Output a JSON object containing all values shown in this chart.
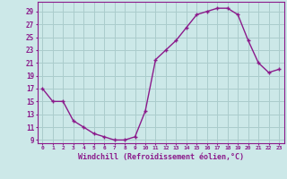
{
  "hours": [
    0,
    1,
    2,
    3,
    4,
    5,
    6,
    7,
    8,
    9,
    10,
    11,
    12,
    13,
    14,
    15,
    16,
    17,
    18,
    19,
    20,
    21,
    22,
    23
  ],
  "values": [
    17,
    15,
    15,
    12,
    11,
    10,
    9.5,
    9,
    9,
    9.5,
    13.5,
    21.5,
    23,
    24.5,
    26.5,
    28.5,
    29,
    29.5,
    29.5,
    28.5,
    24.5,
    21,
    19.5,
    20
  ],
  "line_color": "#8b1a8b",
  "marker_color": "#8b1a8b",
  "bg_color": "#cce8e8",
  "grid_color": "#aacccc",
  "axis_color": "#8b1a8b",
  "tick_label_color": "#8b1a8b",
  "xlabel": "Windchill (Refroidissement éolien,°C)",
  "ylim": [
    8.5,
    30.5
  ],
  "yticks": [
    9,
    11,
    13,
    15,
    17,
    19,
    21,
    23,
    25,
    27,
    29
  ],
  "xticks": [
    0,
    1,
    2,
    3,
    4,
    5,
    6,
    7,
    8,
    9,
    10,
    11,
    12,
    13,
    14,
    15,
    16,
    17,
    18,
    19,
    20,
    21,
    22,
    23
  ],
  "xlim": [
    -0.5,
    23.5
  ]
}
